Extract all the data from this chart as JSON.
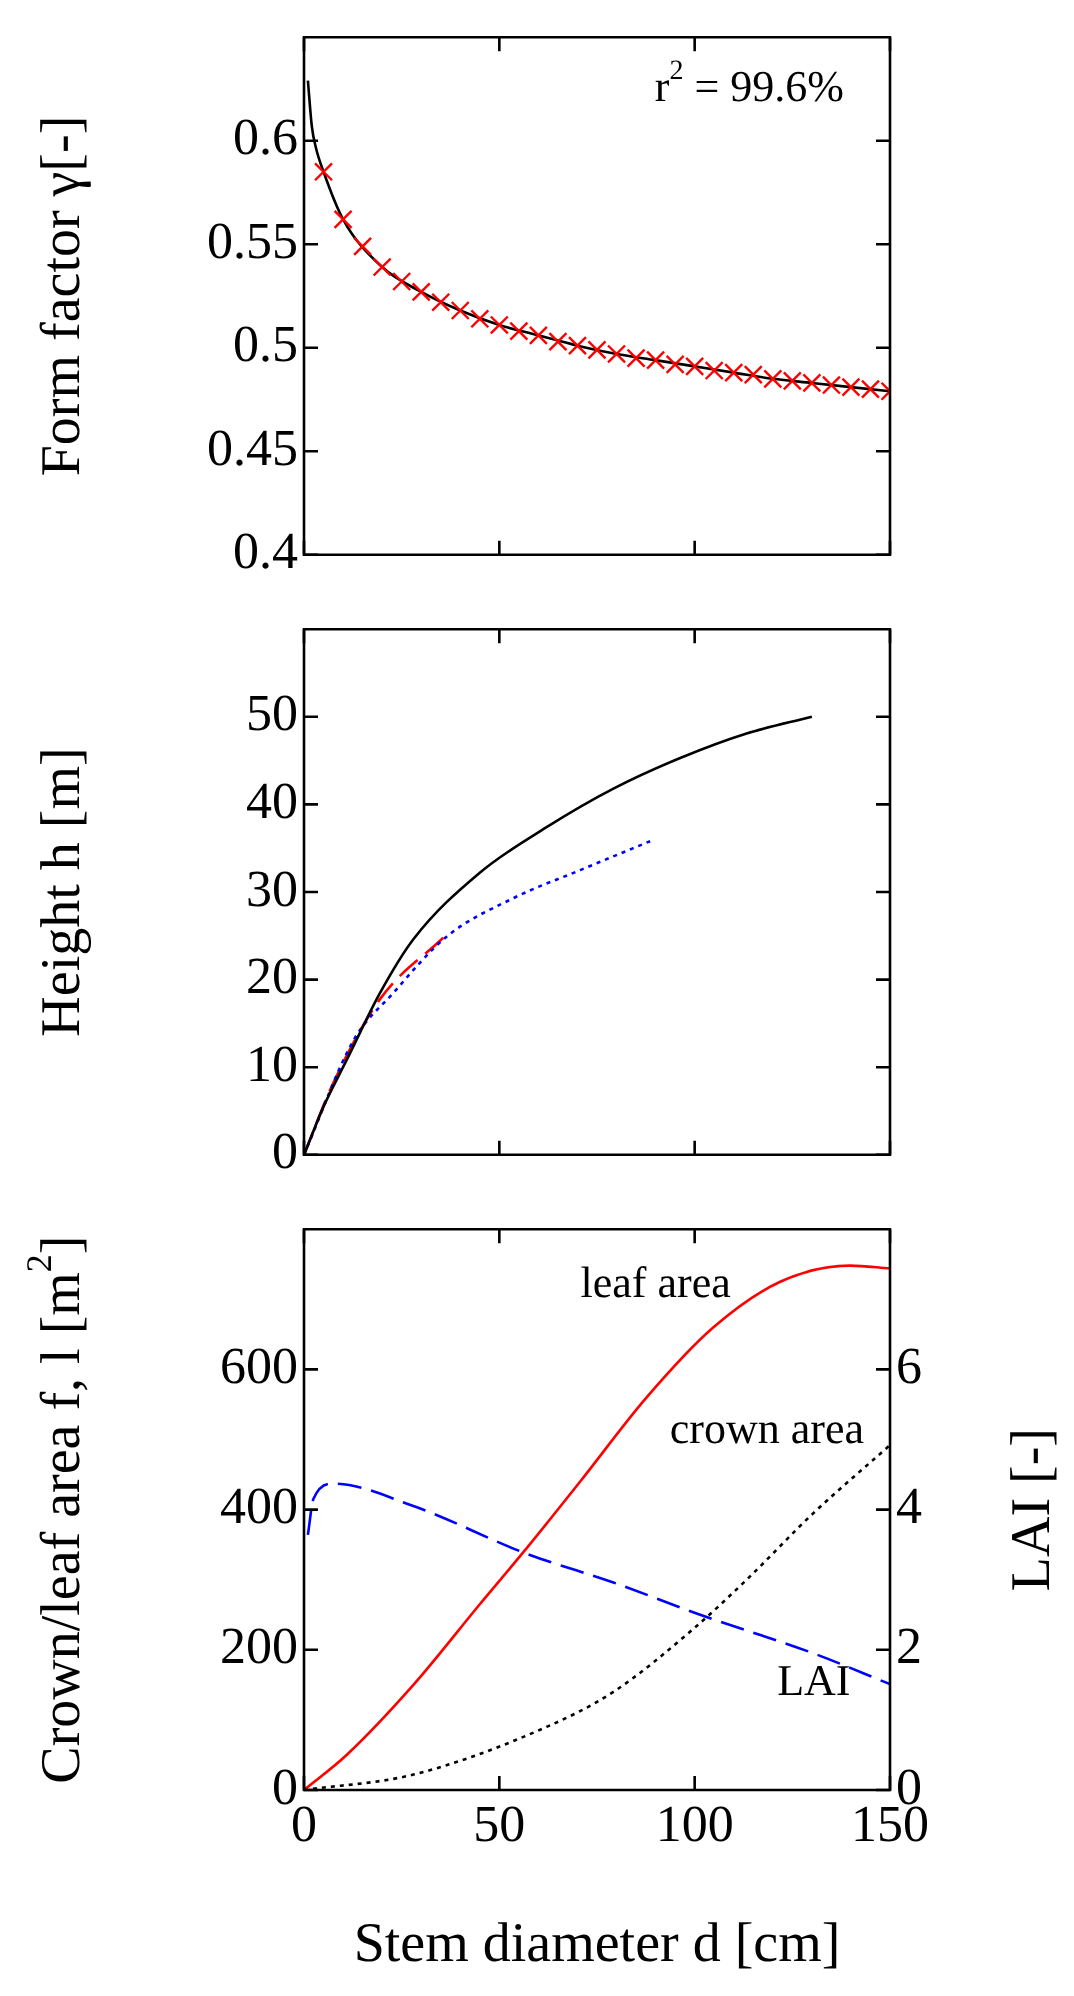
{
  "chart_data": [
    {
      "type": "line",
      "ylabel": "Form factor γ[-]",
      "xlim": [
        0,
        150
      ],
      "xticks": [
        0,
        50,
        100,
        150
      ],
      "ylim": [
        0.4,
        0.65
      ],
      "yticks": [
        0.4,
        0.45,
        0.5,
        0.55,
        0.6
      ],
      "tick_labels": "y",
      "annotations": [
        "r$^{2}$ = 99.6%"
      ],
      "series": [
        {
          "type": "scatter",
          "marker": "cross",
          "color": "#ff0000",
          "x": [
            5,
            10,
            15,
            20,
            25,
            30,
            35,
            40,
            45,
            50,
            55,
            60,
            65,
            70,
            75,
            80,
            85,
            90,
            95,
            100,
            105,
            110,
            115,
            120,
            125,
            130,
            135,
            140,
            145,
            150
          ],
          "values": [
            0.585,
            0.562,
            0.549,
            0.539,
            0.532,
            0.527,
            0.522,
            0.518,
            0.514,
            0.511,
            0.508,
            0.506,
            0.503,
            0.501,
            0.499,
            0.497,
            0.495,
            0.494,
            0.492,
            0.491,
            0.489,
            0.488,
            0.487,
            0.485,
            0.484,
            0.483,
            0.482,
            0.481,
            0.48,
            0.479
          ]
        },
        {
          "line_style": "solid",
          "color": "#000000",
          "x": [
            1,
            2,
            3,
            5,
            10,
            20,
            30,
            40,
            50,
            60,
            70,
            80,
            90,
            100,
            110,
            120,
            130,
            140,
            150
          ],
          "values": [
            0.629,
            0.607,
            0.597,
            0.585,
            0.562,
            0.539,
            0.527,
            0.518,
            0.511,
            0.506,
            0.501,
            0.497,
            0.494,
            0.491,
            0.488,
            0.485,
            0.483,
            0.481,
            0.479
          ]
        }
      ]
    },
    {
      "type": "line",
      "ylabel": "Height h [m]",
      "xlim": [
        0,
        150
      ],
      "xticks": [
        0,
        50,
        100,
        150
      ],
      "ylim": [
        0,
        60
      ],
      "yticks": [
        0,
        10,
        20,
        30,
        40,
        50
      ],
      "tick_labels": "y",
      "series": [
        {
          "line_style": "solid",
          "color": "#000000",
          "x": [
            0,
            5,
            10.9,
            19.5,
            28,
            45,
            62.1,
            79.2,
            96.3,
            113.3,
            130
          ],
          "values": [
            0,
            5.5,
            10.8,
            18.5,
            24.6,
            32.2,
            37.4,
            41.8,
            45.3,
            48.1,
            50
          ]
        },
        {
          "line_style": "dotted",
          "color": "#0000ff",
          "x": [
            0,
            12.6,
            22.9,
            36.5,
            53.6,
            70.7,
            88.6
          ],
          "values": [
            0,
            13,
            18.5,
            24.9,
            29.3,
            32.5,
            35.8
          ]
        },
        {
          "line_style": "dashed",
          "color": "#ff0000",
          "x": [
            0,
            7.5,
            19.5,
            35.7
          ],
          "values": [
            0,
            8.2,
            17.8,
            24.8
          ]
        }
      ]
    },
    {
      "type": "line",
      "ylabel": "Crown/leaf area f, l [m$^{2}$]",
      "y2label": "LAI [-]",
      "xlabel": "Stem diameter d [cm]",
      "xlim": [
        0,
        150
      ],
      "xticks": [
        0,
        50,
        100,
        150
      ],
      "ylim": [
        0,
        800
      ],
      "yticks": [
        0,
        200,
        400,
        600
      ],
      "y2lim": [
        0,
        8
      ],
      "y2ticks": [
        0,
        2,
        4,
        6
      ],
      "annotations": [
        "leaf area",
        "crown area",
        "LAI"
      ],
      "series": [
        {
          "line_style": "solid",
          "color": "#ff0000",
          "x": [
            0,
            10.9,
            28,
            45,
            57,
            70.7,
            87.7,
            104.8,
            121.9,
            139.8,
            150
          ],
          "values": [
            0,
            50,
            150,
            265,
            345,
            440,
            560,
            660,
            725,
            748,
            744
          ]
        },
        {
          "line_style": "dotted",
          "color": "#000000",
          "x": [
            0,
            28,
            62.1,
            79.2,
            99.7,
            113.3,
            130.4,
            150
          ],
          "values": [
            0,
            22,
            90,
            140,
            230,
            300,
            395,
            492
          ]
        },
        {
          "line_style": "dashed",
          "axis": "y2",
          "color": "#0000ff",
          "x": [
            1,
            2.4,
            7.5,
            28,
            57,
            79.2,
            101.4,
            130.4,
            150
          ],
          "values": [
            3.64,
            4.15,
            4.37,
            4.05,
            3.37,
            2.96,
            2.5,
            1.95,
            1.51
          ]
        }
      ]
    }
  ]
}
